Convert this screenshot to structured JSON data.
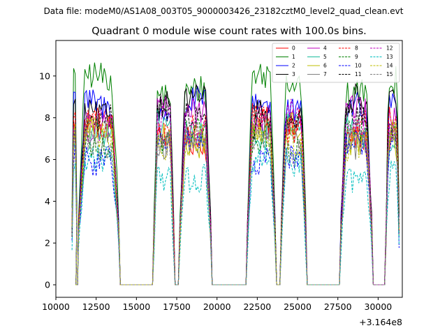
{
  "header": {
    "datafile": "Data file: modeM0/AS1A08_003T05_9000003426_23182cztM0_level2_quad_clean.evt"
  },
  "chart_data": {
    "type": "line",
    "title": "Quadrant 0 module wise count rates with 100.0s bins.",
    "xlabel": "",
    "ylabel": "",
    "x_offset_label": "+3.164e8",
    "xlim": [
      10000,
      31500
    ],
    "ylim": [
      -0.6,
      11.7
    ],
    "xticks": [
      10000,
      12500,
      15000,
      17500,
      20000,
      22500,
      25000,
      27500,
      30000
    ],
    "xtick_labels": [
      "10000",
      "12500",
      "15000",
      "17500",
      "20000",
      "22500",
      "25000",
      "27500",
      "30000"
    ],
    "yticks": [
      0,
      2,
      4,
      6,
      8,
      10
    ],
    "ytick_labels": [
      "0",
      "2",
      "4",
      "6",
      "8",
      "10"
    ],
    "legend_position": "top-right",
    "legend_columns": 4,
    "segments": [
      {
        "x_start": 11000,
        "x_end": 11250,
        "active": true
      },
      {
        "x_start": 11250,
        "x_end": 11400,
        "active": false
      },
      {
        "x_start": 11400,
        "x_end": 13900,
        "active": true
      },
      {
        "x_start": 14000,
        "x_end": 16000,
        "active": false
      },
      {
        "x_start": 16100,
        "x_end": 17300,
        "active": true
      },
      {
        "x_start": 17400,
        "x_end": 17600,
        "active": false
      },
      {
        "x_start": 17700,
        "x_end": 19600,
        "active": true
      },
      {
        "x_start": 19700,
        "x_end": 21800,
        "active": false
      },
      {
        "x_start": 21900,
        "x_end": 23600,
        "active": true
      },
      {
        "x_start": 23700,
        "x_end": 23900,
        "active": false
      },
      {
        "x_start": 24000,
        "x_end": 25500,
        "active": true
      },
      {
        "x_start": 25600,
        "x_end": 27600,
        "active": false
      },
      {
        "x_start": 27700,
        "x_end": 29600,
        "active": true
      },
      {
        "x_start": 29700,
        "x_end": 30400,
        "active": false
      },
      {
        "x_start": 30500,
        "x_end": 31300,
        "active": true
      }
    ],
    "series": [
      {
        "name": "0",
        "color": "#ff0000",
        "dash": "solid",
        "mean": 7.4
      },
      {
        "name": "1",
        "color": "#008000",
        "dash": "solid",
        "mean": 9.6
      },
      {
        "name": "2",
        "color": "#0000ff",
        "dash": "solid",
        "mean": 8.6
      },
      {
        "name": "3",
        "color": "#000000",
        "dash": "solid",
        "mean": 8.5
      },
      {
        "name": "4",
        "color": "#bf00bf",
        "dash": "solid",
        "mean": 7.9
      },
      {
        "name": "5",
        "color": "#1abc9c",
        "dash": "solid",
        "mean": 7.3
      },
      {
        "name": "6",
        "color": "#bfbf00",
        "dash": "solid",
        "mean": 7.2
      },
      {
        "name": "7",
        "color": "#808080",
        "dash": "solid",
        "mean": 7.1
      },
      {
        "name": "8",
        "color": "#ff0000",
        "dash": "dashed",
        "mean": 7.6
      },
      {
        "name": "9",
        "color": "#008000",
        "dash": "dashed",
        "mean": 7.0
      },
      {
        "name": "10",
        "color": "#0000ff",
        "dash": "dashed",
        "mean": 6.4
      },
      {
        "name": "11",
        "color": "#000000",
        "dash": "dashed",
        "mean": 8.0
      },
      {
        "name": "12",
        "color": "#bf00bf",
        "dash": "dashed",
        "mean": 7.8
      },
      {
        "name": "13",
        "color": "#00bfbf",
        "dash": "dashed",
        "mean": 5.5
      },
      {
        "name": "14",
        "color": "#bfbf00",
        "dash": "dashed",
        "mean": 7.0
      },
      {
        "name": "15",
        "color": "#808080",
        "dash": "dashed",
        "mean": 6.8
      }
    ]
  }
}
